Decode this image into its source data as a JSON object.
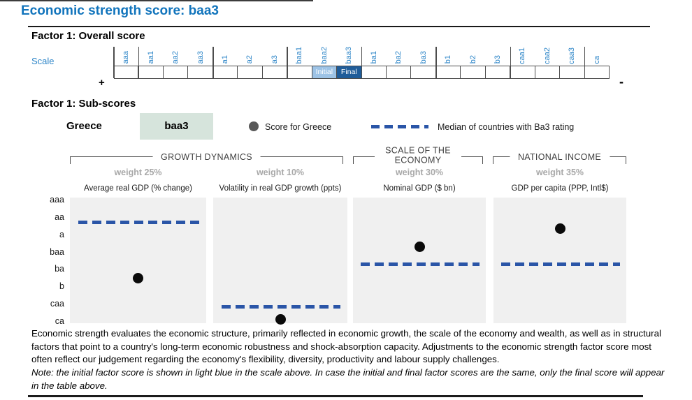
{
  "page": {
    "title": "Economic strength score: baa3"
  },
  "overall": {
    "heading": "Factor 1: Overall score",
    "scale_label": "Scale",
    "plus": "+",
    "minus": "-",
    "ratings": [
      "aaa",
      "aa1",
      "aa2",
      "aa3",
      "a1",
      "a2",
      "a3",
      "baa1",
      "baa2",
      "baa3",
      "ba1",
      "ba2",
      "ba3",
      "b1",
      "b2",
      "b3",
      "caa1",
      "caa2",
      "caa3",
      "ca"
    ],
    "group_starts": [
      0,
      1,
      4,
      7,
      10,
      13,
      16,
      19
    ],
    "initial_rating": "baa2",
    "final_rating": "baa3",
    "initial_label": "Initial",
    "final_label": "Final"
  },
  "subscores": {
    "heading": "Factor 1: Sub-scores",
    "country": "Greece",
    "country_score": "baa3",
    "legend": {
      "dot_label": "Score for Greece",
      "median_label": "Median of countries with Ba3 rating"
    },
    "groups": [
      {
        "title": "GROWTH DYNAMICS"
      },
      {
        "title": "SCALE OF THE ECONOMY"
      },
      {
        "title": "NATIONAL INCOME"
      }
    ]
  },
  "chart_data": {
    "type": "scatter",
    "y_axis_labels": [
      "aaa",
      "aa",
      "a",
      "baa",
      "ba",
      "b",
      "caa",
      "ca"
    ],
    "y_axis_note": "rating scale from aaa (top, level 0) to ca (bottom, level 7); levels are fractional row positions",
    "legend_position": "above charts",
    "grid": false,
    "series": [
      {
        "name": "Score for Greece",
        "marker": "black dot"
      },
      {
        "name": "Median of countries with Ba3 rating",
        "marker": "blue dashed line"
      }
    ],
    "panels": [
      {
        "group": "GROWTH DYNAMICS",
        "weight": "weight 25%",
        "title": "Average real GDP (% change)",
        "greece": {
          "score": "ba3",
          "level": 4.47
        },
        "median": {
          "score": "aa3",
          "level": 1.25
        }
      },
      {
        "group": "GROWTH DYNAMICS",
        "weight": "weight 10%",
        "title": "Volatility in real GDP growth (ppts)",
        "greece": {
          "score": "ca",
          "level": 6.85
        },
        "median": {
          "score": "caa1",
          "level": 6.12
        }
      },
      {
        "group": "SCALE OF THE ECONOMY",
        "weight": "weight 30%",
        "title": "Nominal GDP ($ bn)",
        "greece": {
          "score": "baa1",
          "level": 2.69
        },
        "median": {
          "score": "ba1",
          "level": 3.7
        }
      },
      {
        "group": "NATIONAL INCOME",
        "weight": "weight 35%",
        "title": "GDP per capita (PPP, Intl$)",
        "greece": {
          "score": "a1",
          "level": 1.65
        },
        "median": {
          "score": "ba1",
          "level": 3.7
        }
      }
    ]
  },
  "footer": {
    "body": "Economic strength evaluates the economic structure, primarily reflected in economic growth, the scale of the economy and wealth, as well as in structural factors that point to a country's long-term economic robustness and shock-absorption capacity. Adjustments to the economic strength factor score most often reflect our judgement regarding the economy's flexibility, diversity, productivity and labour supply challenges.",
    "note": "Note: the initial factor score is shown in light blue in the scale above. In case the initial and final factor scores are the same, only the final score will appear in the table above."
  },
  "colors": {
    "title_blue": "#1174bc",
    "scale_blue": "#2e86c8",
    "initial_bg": "#9dc3e6",
    "final_bg": "#1f5c99",
    "median_blue": "#2a55a7",
    "badge_green": "#d6e4dc",
    "legend_dot_gray": "#595959",
    "panel_bg": "#f0f0f0",
    "weight_gray": "#a8a8a8"
  }
}
